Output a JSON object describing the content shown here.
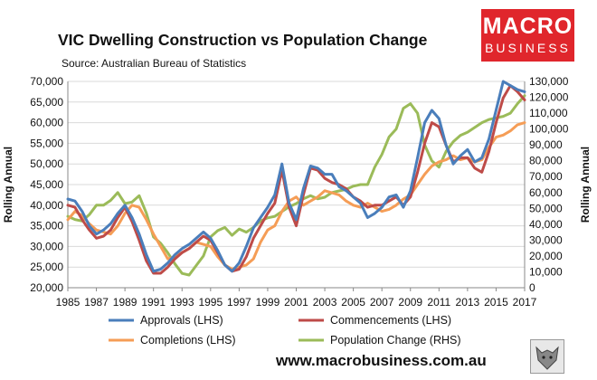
{
  "chart_data": {
    "type": "line",
    "title": "VIC Dwelling Construction vs Population Change",
    "subtitle": "Source: Australian Bureau of Statistics",
    "ylabel_left": "Rolling Annual",
    "ylabel_right": "Rolling Annual",
    "ylim_left": [
      20000,
      70000
    ],
    "ylim_right": [
      0,
      130000
    ],
    "xlim": [
      1985,
      2017
    ],
    "yticks_left": [
      "20,000",
      "25,000",
      "30,000",
      "35,000",
      "40,000",
      "45,000",
      "50,000",
      "55,000",
      "60,000",
      "65,000",
      "70,000"
    ],
    "yticks_right": [
      "0",
      "10,000",
      "20,000",
      "30,000",
      "40,000",
      "50,000",
      "60,000",
      "70,000",
      "80,000",
      "90,000",
      "100,000",
      "110,000",
      "120,000",
      "130,000"
    ],
    "xticks": [
      "1985",
      "1987",
      "1989",
      "1991",
      "1993",
      "1995",
      "1997",
      "1999",
      "2001",
      "2003",
      "2005",
      "2007",
      "2009",
      "2011",
      "2013",
      "2015",
      "2017"
    ],
    "grid": true,
    "legend_position": "bottom",
    "series": [
      {
        "name": "Approvals (LHS)",
        "axis": "left",
        "color": "#4a7ebb",
        "x": [
          1985,
          1985.5,
          1986,
          1986.5,
          1987,
          1987.5,
          1988,
          1988.5,
          1989,
          1989.5,
          1990,
          1990.5,
          1991,
          1991.5,
          1992,
          1992.5,
          1993,
          1993.5,
          1994,
          1994.5,
          1995,
          1995.5,
          1996,
          1996.5,
          1997,
          1997.5,
          1998,
          1998.5,
          1999,
          1999.5,
          2000,
          2000.5,
          2001,
          2001.5,
          2002,
          2002.5,
          2003,
          2003.5,
          2004,
          2004.5,
          2005,
          2005.5,
          2006,
          2006.5,
          2007,
          2007.5,
          2008,
          2008.5,
          2009,
          2009.5,
          2010,
          2010.5,
          2011,
          2011.5,
          2012,
          2012.5,
          2013,
          2013.5,
          2014,
          2014.5,
          2015,
          2015.5,
          2016,
          2016.5,
          2017
        ],
        "y": [
          41500,
          41000,
          38500,
          35000,
          33000,
          34000,
          35500,
          38000,
          40000,
          37000,
          33000,
          28000,
          24000,
          24500,
          26000,
          28000,
          29500,
          30500,
          32000,
          33500,
          32000,
          29000,
          25500,
          24000,
          26000,
          30000,
          34500,
          37000,
          39500,
          42500,
          50000,
          40500,
          36500,
          44000,
          49500,
          49000,
          47500,
          47500,
          44500,
          43500,
          42000,
          40500,
          37000,
          38000,
          39500,
          42000,
          42500,
          39500,
          43500,
          51500,
          60000,
          63000,
          61000,
          54500,
          50000,
          52000,
          53500,
          50500,
          51500,
          56000,
          63000,
          70000,
          69000,
          68000,
          67500
        ]
      },
      {
        "name": "Commencements (LHS)",
        "axis": "left",
        "color": "#be4b48",
        "x": [
          1985,
          1985.5,
          1986,
          1986.5,
          1987,
          1987.5,
          1988,
          1988.5,
          1989,
          1989.5,
          1990,
          1990.5,
          1991,
          1991.5,
          1992,
          1992.5,
          1993,
          1993.5,
          1994,
          1994.5,
          1995,
          1995.5,
          1996,
          1996.5,
          1997,
          1997.5,
          1998,
          1998.5,
          1999,
          1999.5,
          2000,
          2000.5,
          2001,
          2001.5,
          2002,
          2002.5,
          2003,
          2003.5,
          2004,
          2004.5,
          2005,
          2005.5,
          2006,
          2006.5,
          2007,
          2007.5,
          2008,
          2008.5,
          2009,
          2009.5,
          2010,
          2010.5,
          2011,
          2011.5,
          2012,
          2012.5,
          2013,
          2013.5,
          2014,
          2014.5,
          2015,
          2015.5,
          2016,
          2016.5,
          2017
        ],
        "y": [
          40000,
          39500,
          36500,
          34000,
          32000,
          32500,
          34000,
          37000,
          39500,
          36000,
          31500,
          26500,
          23500,
          23500,
          25000,
          27000,
          28500,
          29500,
          31000,
          32500,
          31500,
          28500,
          25500,
          24000,
          24500,
          27500,
          32000,
          35000,
          38000,
          40500,
          48500,
          39500,
          35000,
          42500,
          49000,
          48500,
          46500,
          45500,
          45000,
          44000,
          42000,
          41000,
          39500,
          40000,
          40000,
          41000,
          42000,
          40000,
          42000,
          48000,
          55000,
          60000,
          59000,
          54500,
          50500,
          51500,
          51500,
          49000,
          48000,
          53000,
          60000,
          66000,
          69000,
          67500,
          65500
        ]
      },
      {
        "name": "Completions (LHS)",
        "axis": "left",
        "color": "#f59d56",
        "x": [
          1985,
          1985.5,
          1986,
          1986.5,
          1987,
          1987.5,
          1988,
          1988.5,
          1989,
          1989.5,
          1990,
          1990.5,
          1991,
          1991.5,
          1992,
          1992.5,
          1993,
          1993.5,
          1994,
          1994.5,
          1995,
          1995.5,
          1996,
          1996.5,
          1997,
          1997.5,
          1998,
          1998.5,
          1999,
          1999.5,
          2000,
          2000.5,
          2001,
          2001.5,
          2002,
          2002.5,
          2003,
          2003.5,
          2004,
          2004.5,
          2005,
          2005.5,
          2006,
          2006.5,
          2007,
          2007.5,
          2008,
          2008.5,
          2009,
          2009.5,
          2010,
          2010.5,
          2011,
          2011.5,
          2012,
          2012.5,
          2013,
          2013.5,
          2014,
          2014.5,
          2015,
          2015.5,
          2016,
          2016.5,
          2017
        ],
        "y": [
          36500,
          38500,
          37500,
          35500,
          34000,
          33500,
          33000,
          35000,
          38000,
          40000,
          39500,
          36500,
          33000,
          30000,
          27000,
          27500,
          28500,
          29500,
          31000,
          30500,
          30000,
          27500,
          25500,
          24500,
          25000,
          25500,
          27000,
          31000,
          34000,
          35000,
          38500,
          41000,
          42000,
          40000,
          41000,
          42000,
          43500,
          43000,
          42500,
          41000,
          40000,
          39500,
          40500,
          39500,
          38500,
          39000,
          40000,
          41500,
          42500,
          45000,
          47500,
          49500,
          50500,
          51000,
          52000,
          51000,
          51500,
          50500,
          51000,
          54000,
          56500,
          57000,
          58000,
          59500,
          60000
        ]
      },
      {
        "name": "Population Change (RHS)",
        "axis": "right",
        "color": "#9bbb59",
        "x": [
          1985,
          1985.5,
          1986,
          1986.5,
          1987,
          1987.5,
          1988,
          1988.5,
          1989,
          1989.5,
          1990,
          1990.5,
          1991,
          1991.5,
          1992,
          1992.5,
          1993,
          1993.5,
          1994,
          1994.5,
          1995,
          1995.5,
          1996,
          1996.5,
          1997,
          1997.5,
          1998,
          1998.5,
          1999,
          1999.5,
          2000,
          2000.5,
          2001,
          2001.5,
          2002,
          2002.5,
          2003,
          2003.5,
          2004,
          2004.5,
          2005,
          2005.5,
          2006,
          2006.5,
          2007,
          2007.5,
          2008,
          2008.5,
          2009,
          2009.5,
          2010,
          2010.5,
          2011,
          2011.5,
          2012,
          2012.5,
          2013,
          2013.5,
          2014,
          2014.5,
          2015,
          2015.5,
          2016,
          2016.5,
          2017
        ],
        "y": [
          45000,
          43000,
          42000,
          46000,
          52000,
          52000,
          55000,
          60000,
          53000,
          54000,
          58000,
          47000,
          32000,
          28000,
          22000,
          15000,
          9000,
          8000,
          14000,
          20000,
          32000,
          36000,
          38000,
          33000,
          37000,
          35000,
          38000,
          42000,
          44000,
          45000,
          48000,
          51000,
          53000,
          56000,
          58000,
          56000,
          57000,
          60000,
          61000,
          62000,
          64000,
          65000,
          65000,
          76000,
          84000,
          95000,
          100000,
          113000,
          116000,
          110000,
          90000,
          80000,
          76000,
          86000,
          92000,
          96000,
          98000,
          101000,
          104000,
          106000,
          107000,
          108000,
          110000,
          116000,
          121000
        ]
      }
    ]
  },
  "branding": {
    "logo_line1": "MACRO",
    "logo_line2": "BUSINESS",
    "url": "www.macrobusiness.com.au"
  }
}
